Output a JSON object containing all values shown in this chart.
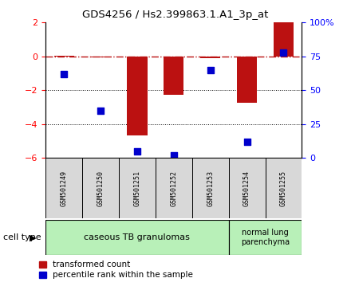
{
  "title": "GDS4256 / Hs2.399863.1.A1_3p_at",
  "samples": [
    "GSM501249",
    "GSM501250",
    "GSM501251",
    "GSM501252",
    "GSM501253",
    "GSM501254",
    "GSM501255"
  ],
  "transformed_count": [
    0.05,
    -0.05,
    -4.65,
    -2.25,
    -0.1,
    -2.75,
    2.0
  ],
  "percentile_rank": [
    62,
    35,
    5,
    2,
    65,
    12,
    78
  ],
  "ylim_left": [
    -6,
    2
  ],
  "ylim_right": [
    0,
    100
  ],
  "yticks_left": [
    -6,
    -4,
    -2,
    0,
    2
  ],
  "yticks_right": [
    0,
    25,
    50,
    75,
    100
  ],
  "ytick_labels_right": [
    "0",
    "25",
    "50",
    "75",
    "100%"
  ],
  "bar_color": "#bb1111",
  "scatter_color": "#0000cc",
  "bar_width": 0.55,
  "scatter_size": 30,
  "dotted_lines": [
    -2,
    -4
  ],
  "background_color": "#ffffff",
  "cell_type_label": "cell type",
  "group1_label": "caseous TB granulomas",
  "group2_label": "normal lung\nparenchyma",
  "group_color": "#b8f0b8",
  "sample_box_color": "#d8d8d8",
  "legend_red": "transformed count",
  "legend_blue": "percentile rank within the sample"
}
